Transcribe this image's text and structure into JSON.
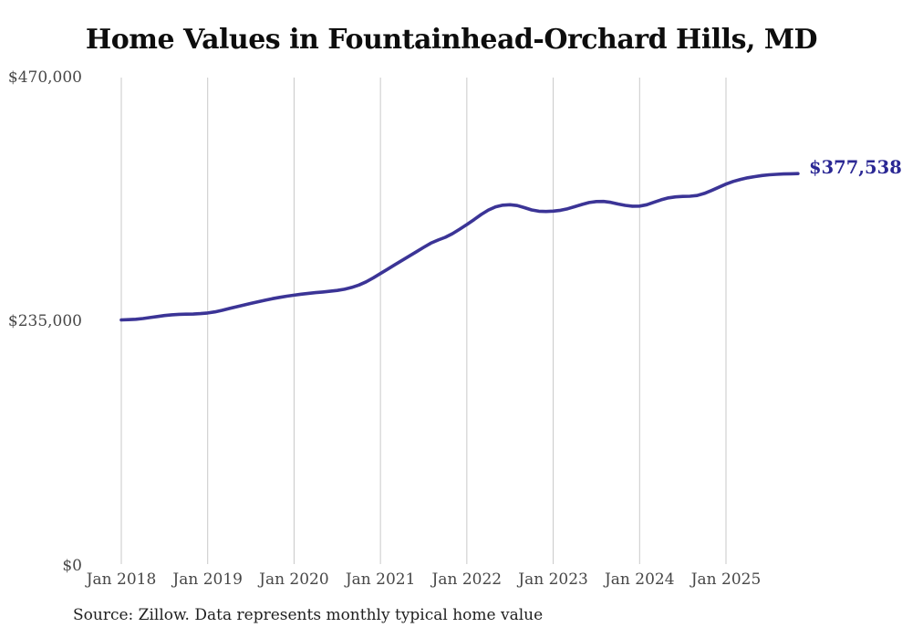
{
  "title": "Home Values in Fountainhead-Orchard Hills, MD",
  "source_note": "Source: Zillow. Data represents monthly typical home value",
  "end_label": "$377,538",
  "colors": {
    "line": "#3b3496",
    "end_label": "#2b2894",
    "gridline": "#c9c9c9",
    "axis_text": "#474747",
    "title_text": "#0d0d0d",
    "background": "#ffffff"
  },
  "chart_data": {
    "type": "line",
    "title": "Home Values in Fountainhead-Orchard Hills, MD",
    "unit": "USD",
    "frequency": "monthly",
    "grid": "vertical-only",
    "legend": "none",
    "xlabel": "",
    "ylabel": "",
    "x_tick_labels": [
      "Jan 2018",
      "Jan 2019",
      "Jan 2020",
      "Jan 2021",
      "Jan 2022",
      "Jan 2023",
      "Jan 2024",
      "Jan 2025"
    ],
    "y_tick_labels": [
      "$470,000",
      "$235,000",
      "$0"
    ],
    "y_ticks": [
      470000,
      235000,
      0
    ],
    "ylim": [
      0,
      470000
    ],
    "last_point": {
      "month": "2025-11",
      "value": 377538,
      "label": "$377,538"
    },
    "series": [
      {
        "name": "Typical home value",
        "start_month": "2018-01",
        "values": [
          236800,
          237000,
          237400,
          238100,
          239000,
          240000,
          241000,
          241700,
          242100,
          242300,
          242400,
          242800,
          243400,
          244500,
          246000,
          247700,
          249400,
          251100,
          252700,
          254200,
          255700,
          257200,
          258500,
          259600,
          260600,
          261500,
          262300,
          263000,
          263600,
          264300,
          265100,
          266300,
          268000,
          270300,
          273400,
          277300,
          281400,
          285600,
          289800,
          294000,
          298200,
          302400,
          306600,
          310600,
          313600,
          316300,
          319800,
          324100,
          328600,
          333300,
          338200,
          342500,
          345600,
          347200,
          347600,
          346800,
          344800,
          342600,
          341400,
          341100,
          341500,
          342300,
          343800,
          345800,
          347900,
          349700,
          350700,
          350800,
          349900,
          348300,
          347000,
          346200,
          346300,
          347600,
          350000,
          352400,
          354200,
          355200,
          355600,
          355800,
          356500,
          358500,
          361300,
          364400,
          367500,
          370000,
          372000,
          373500,
          374700,
          375700,
          376400,
          376900,
          377200,
          377400,
          377538
        ]
      }
    ]
  }
}
